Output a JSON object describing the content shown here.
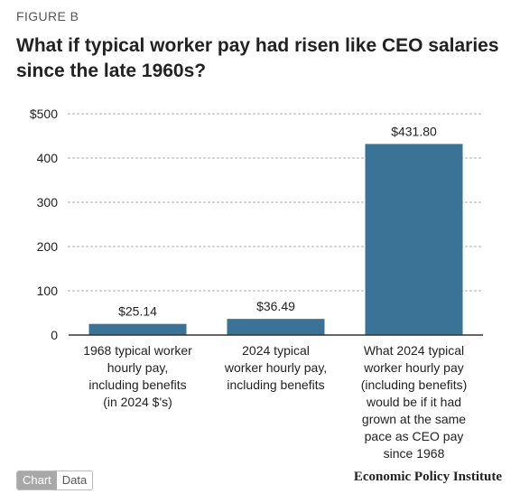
{
  "figure_label": "FIGURE B",
  "title": "What if typical worker pay had risen like CEO salaries since the late 1960s?",
  "toggle": {
    "chart_label": "Chart",
    "data_label": "Data",
    "active": "Chart"
  },
  "source": "Economic Policy Institute",
  "colors": {
    "bar": "#3a7396",
    "grid": "#cfcfcf",
    "axis": "#333333"
  },
  "chart_data": {
    "type": "bar",
    "categories": [
      "1968 typical worker hourly pay, including benefits (in 2024 $'s)",
      "2024 typical worker hourly pay, including benefits",
      "What 2024 typical worker hourly pay (including benefits) would be if it had grown at the same pace as CEO pay since 1968"
    ],
    "category_lines": [
      [
        "1968 typical worker",
        "hourly pay,",
        "including benefits",
        "(in 2024 $'s)"
      ],
      [
        "2024 typical",
        "worker hourly pay,",
        "including benefits"
      ],
      [
        "What 2024 typical",
        "worker hourly pay",
        "(including benefits)",
        "would be if it had",
        "grown at the same",
        "pace as CEO pay",
        "since 1968"
      ]
    ],
    "values": [
      25.14,
      36.49,
      431.8
    ],
    "data_labels": [
      "$25.14",
      "$36.49",
      "$431.80"
    ],
    "y_ticks": [
      0,
      100,
      200,
      300,
      400,
      500
    ],
    "y_tick_labels": [
      "0",
      "100",
      "200",
      "300",
      "400",
      "$500"
    ],
    "ylim": [
      0,
      500
    ],
    "grid": true,
    "title": "What if typical worker pay had risen like CEO salaries since the late 1960s?",
    "xlabel": "",
    "ylabel": ""
  }
}
